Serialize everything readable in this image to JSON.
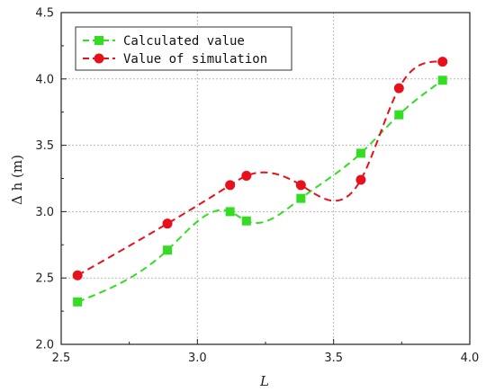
{
  "chart_data": {
    "type": "line",
    "xlabel": "L",
    "ylabel": "Δ h (m)",
    "xlim": [
      2.5,
      4.0
    ],
    "ylim": [
      2.0,
      4.5
    ],
    "xticks": [
      "2.5",
      "3.0",
      "3.5",
      "4.0"
    ],
    "yticks": [
      "2.0",
      "2.5",
      "3.0",
      "3.5",
      "4.0",
      "4.5"
    ],
    "grid": true,
    "legend_position": "top-left",
    "series": [
      {
        "name": "Calculated value",
        "color": "#33dd22",
        "marker": "square",
        "line_style": "dashed",
        "x": [
          2.56,
          2.89,
          3.12,
          3.18,
          3.38,
          3.6,
          3.74,
          3.9
        ],
        "y": [
          2.32,
          2.71,
          3.0,
          2.93,
          3.1,
          3.44,
          3.73,
          3.99
        ]
      },
      {
        "name": "Value of simulation",
        "color": "#e8101a",
        "marker": "circle",
        "line_style": "dashed",
        "x": [
          2.56,
          2.89,
          3.12,
          3.18,
          3.38,
          3.6,
          3.74,
          3.9
        ],
        "y": [
          2.52,
          2.91,
          3.2,
          3.27,
          3.2,
          3.24,
          3.93,
          4.13
        ]
      }
    ]
  }
}
